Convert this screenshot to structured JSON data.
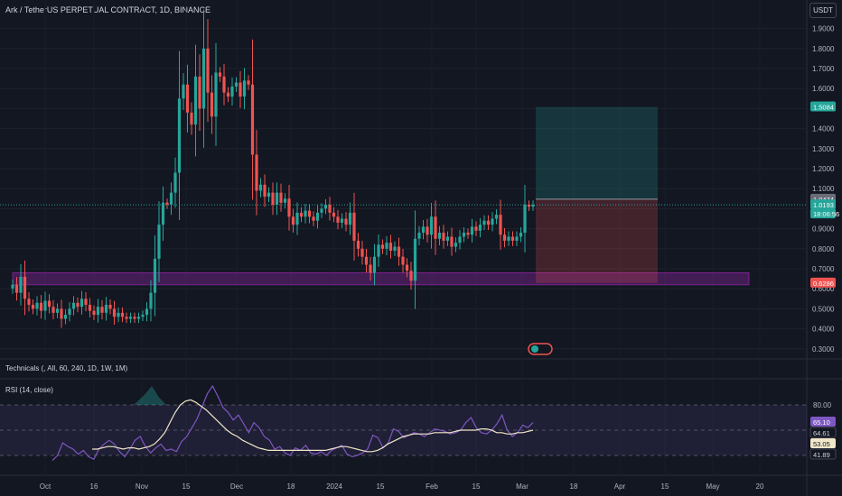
{
  "header": {
    "symbol_title": "Ark / TetherUS PERPETUAL CONTRACT, 1D, BINANCE",
    "currency": "USDT"
  },
  "indicators": {
    "technicals_title": "Technicals (, All, 60, 240, 1D, 1W, 1M)",
    "rsi_title": "RSI (14, close)"
  },
  "colors": {
    "background": "#131722",
    "up": "#26a69a",
    "down": "#ef5350",
    "rsi_line": "#7e57c2",
    "rsi_ma": "#f0e6c8",
    "zone": "#9c27b0",
    "target_zone": "#26a69a",
    "stop_zone": "#ef5350"
  },
  "price_labels": [
    {
      "value": "1.5084",
      "kind": "target"
    },
    {
      "value": "1.0474",
      "kind": "entry"
    },
    {
      "value": "1.0193",
      "kind": "last"
    },
    {
      "value": "18:06:56",
      "kind": "countdown"
    },
    {
      "value": "0.6286",
      "kind": "stop"
    }
  ],
  "rsi_labels": [
    {
      "value": "65.10",
      "kind": "rsi"
    },
    {
      "value": "64.61",
      "kind": "level"
    },
    {
      "value": "53.05",
      "kind": "ma"
    },
    {
      "value": "41.89",
      "kind": "level"
    }
  ],
  "chart_data": [
    {
      "type": "candlestick",
      "title": "Ark / TetherUS PERPETUAL CONTRACT, 1D, BINANCE",
      "y_scale": "linear",
      "ylim": [
        0.25,
        1.95
      ],
      "yticks": [
        "1.9000",
        "1.8000",
        "1.7000",
        "1.6000",
        "1.5000",
        "1.4000",
        "1.3000",
        "1.2000",
        "1.1000",
        "1.0000",
        "0.9000",
        "0.8000",
        "0.7000",
        "0.6000",
        "0.5000",
        "0.4000",
        "0.3000"
      ],
      "xticks": [
        "Oct",
        "16",
        "Nov",
        "15",
        "Dec",
        "18",
        "2024",
        "15",
        "Feb",
        "15",
        "Mar",
        "18",
        "Apr",
        "15",
        "May",
        "20"
      ],
      "close_series": [
        0.62,
        0.58,
        0.66,
        0.55,
        0.52,
        0.5,
        0.53,
        0.49,
        0.54,
        0.51,
        0.48,
        0.5,
        0.45,
        0.47,
        0.5,
        0.53,
        0.51,
        0.55,
        0.52,
        0.49,
        0.47,
        0.51,
        0.48,
        0.52,
        0.5,
        0.46,
        0.48,
        0.46,
        0.45,
        0.46,
        0.45,
        0.46,
        0.47,
        0.5,
        0.58,
        0.75,
        0.92,
        1.03,
        1.02,
        1.08,
        1.18,
        1.55,
        1.62,
        1.48,
        1.42,
        1.66,
        1.5,
        1.8,
        1.58,
        1.46,
        1.68,
        1.66,
        1.58,
        1.56,
        1.61,
        1.63,
        1.56,
        1.64,
        1.62,
        1.27,
        1.09,
        1.12,
        1.06,
        1.08,
        1.02,
        1.08,
        1.03,
        1.05,
        0.96,
        0.92,
        0.98,
        0.96,
        0.99,
        0.96,
        0.94,
        0.98,
        1.0,
        1.02,
        0.98,
        0.96,
        0.93,
        0.95,
        0.92,
        0.98,
        0.84,
        0.8,
        0.76,
        0.72,
        0.68,
        0.76,
        0.82,
        0.8,
        0.83,
        0.79,
        0.81,
        0.76,
        0.72,
        0.69,
        0.64,
        0.85,
        0.88,
        0.91,
        0.87,
        0.96,
        0.85,
        0.88,
        0.84,
        0.86,
        0.81,
        0.83,
        0.86,
        0.88,
        0.87,
        0.91,
        0.89,
        0.92,
        0.94,
        0.92,
        0.95,
        0.97,
        0.87,
        0.84,
        0.86,
        0.84,
        0.86,
        0.88,
        1.02,
        1.01,
        1.02
      ],
      "trade": {
        "target": 1.5084,
        "entry": 1.0474,
        "stop": 0.6286
      },
      "support_zone": [
        0.62,
        0.68
      ],
      "last_price": 1.0193
    },
    {
      "type": "line",
      "title": "RSI (14, close)",
      "ylim": [
        30,
        100
      ],
      "yticks": [
        "80.00"
      ],
      "bands": [
        80,
        40
      ],
      "series": [
        {
          "name": "RSI",
          "values": [
            36,
            40,
            50,
            47,
            45,
            41,
            44,
            39,
            37,
            45,
            49,
            52,
            49,
            43,
            39,
            45,
            52,
            55,
            47,
            42,
            46,
            49,
            44,
            45,
            43,
            51,
            55,
            62,
            69,
            79,
            89,
            95,
            87,
            78,
            74,
            68,
            72,
            65,
            58,
            66,
            62,
            55,
            52,
            45,
            47,
            42,
            40,
            46,
            44,
            48,
            42,
            41,
            43,
            40,
            44,
            46,
            48,
            41,
            39,
            40,
            42,
            45,
            56,
            54,
            46,
            50,
            61,
            59,
            54,
            56,
            58,
            57,
            55,
            58,
            61,
            60,
            59,
            57,
            58,
            60,
            66,
            70,
            62,
            58,
            57,
            60,
            65,
            72,
            60,
            55,
            58,
            64,
            62,
            66
          ]
        },
        {
          "name": "MA",
          "values": [
            45,
            45,
            46,
            47,
            47,
            46,
            45,
            46,
            46,
            45,
            46,
            47,
            49,
            53,
            58,
            66,
            74,
            80,
            83,
            84,
            82,
            79,
            76,
            72,
            68,
            64,
            60,
            57,
            55,
            52,
            50,
            48,
            46,
            45,
            44,
            44,
            44,
            44,
            44,
            44,
            44,
            44,
            44,
            44,
            44,
            44,
            45,
            46,
            47,
            47,
            46,
            45,
            44,
            43,
            43,
            44,
            46,
            49,
            51,
            53,
            55,
            56,
            57,
            57,
            57,
            57,
            58,
            58,
            58,
            58,
            59,
            60,
            60,
            60,
            60,
            61,
            61,
            60,
            58,
            58,
            57,
            57,
            58,
            58,
            59,
            60
          ]
        }
      ],
      "current": {
        "rsi": 65.1,
        "ma": 53.05
      }
    }
  ]
}
